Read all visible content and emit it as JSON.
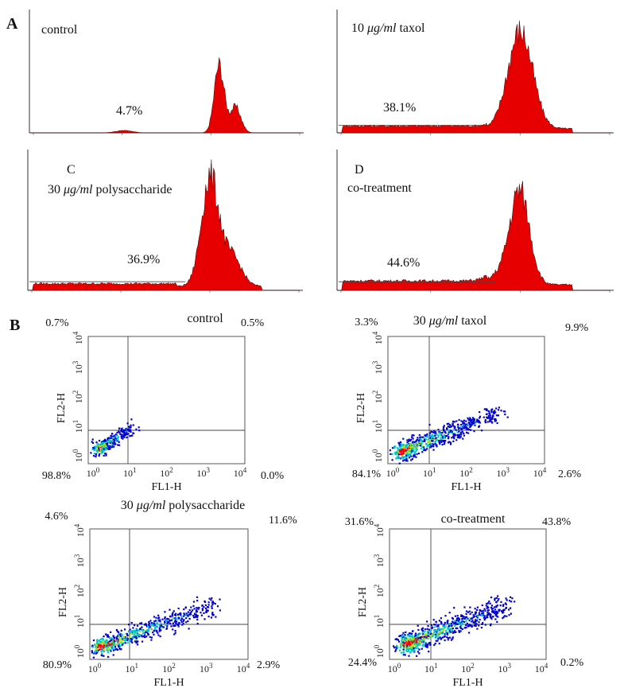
{
  "panel_labels": {
    "a": "A",
    "b": "B"
  },
  "histograms": [
    {
      "title_prefix": "control",
      "title_em": "",
      "title_suffix": "",
      "sub_label": "",
      "percent": "4.7%"
    },
    {
      "title_prefix": "10 ",
      "title_em": "μg/ml",
      "title_suffix": " taxol",
      "sub_label": "",
      "percent": "38.1%"
    },
    {
      "title_prefix": "30 ",
      "title_em": "μg/ml",
      "title_suffix": " polysaccharide",
      "sub_label": "C",
      "percent": "36.9%"
    },
    {
      "title_prefix": "co-treatment",
      "title_em": "",
      "title_suffix": "",
      "sub_label": "D",
      "percent": "44.6%"
    }
  ],
  "flow_plots": [
    {
      "title_prefix": "control",
      "title_em": "",
      "title_suffix": "",
      "ul": "0.7%",
      "ur": "0.5%",
      "ll": "98.8%",
      "lr": "0.0%"
    },
    {
      "title_prefix": "30 ",
      "title_em": "μg/ml",
      "title_suffix": " taxol",
      "ul": "3.3%",
      "ur": "9.9%",
      "ll": "84.1%",
      "lr": "2.6%"
    },
    {
      "title_prefix": "30 ",
      "title_em": "μg/ml",
      "title_suffix": " polysaccharide",
      "ul": "4.6%",
      "ur": "11.6%",
      "ll": "80.9%",
      "lr": "2.9%"
    },
    {
      "title_prefix": "co-treatment",
      "title_em": "",
      "title_suffix": "",
      "ul": "31.6%",
      "ur": "43.8%",
      "ll": "24.4%",
      "lr": "0.2%"
    }
  ],
  "axes": {
    "x_label": "FL1-H",
    "y_label": "FL2-H",
    "tick_base": "10",
    "tick_exponents": [
      "0",
      "1",
      "2",
      "3",
      "4"
    ]
  },
  "colors": {
    "histogram_fill": "#e60000",
    "dot_low": "#0000cc",
    "dot_mid": "#00c8c8",
    "dot_high": "#ff0000"
  }
}
